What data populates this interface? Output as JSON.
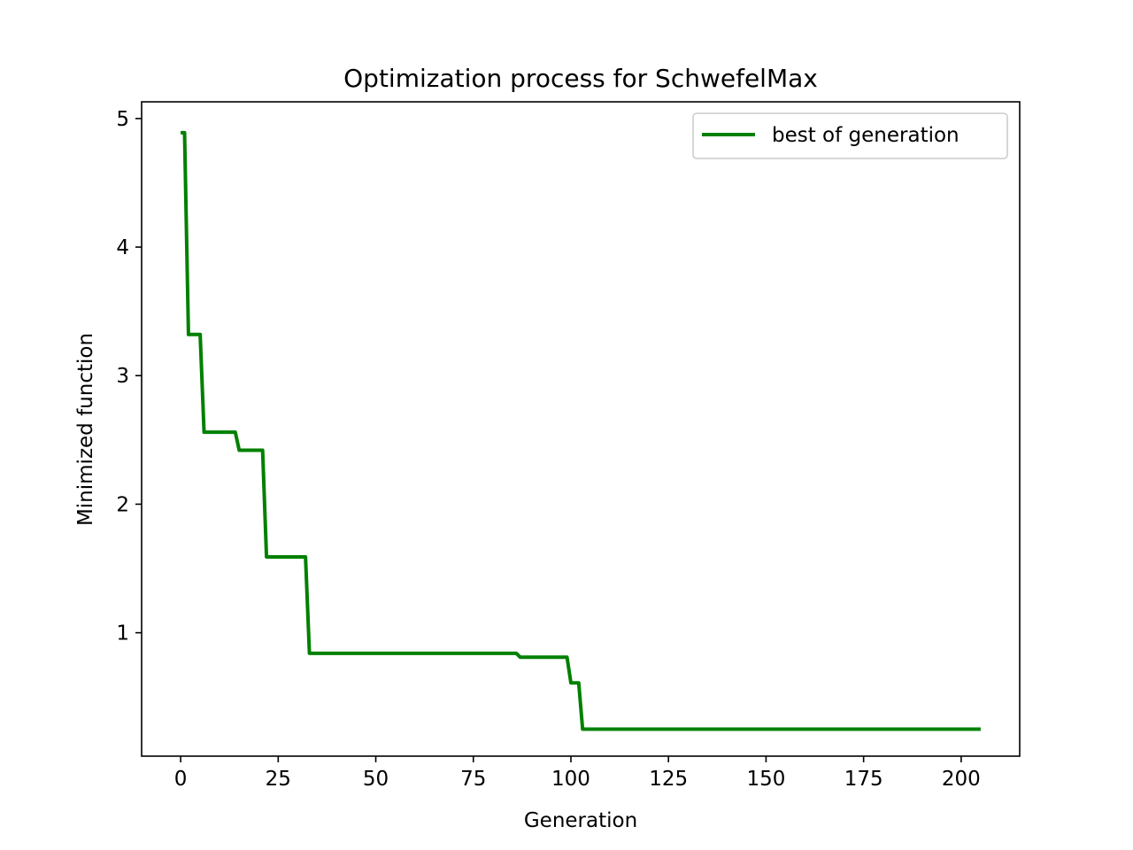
{
  "chart_data": {
    "type": "line",
    "title": "Optimization process for SchwefelMax",
    "xlabel": "Generation",
    "ylabel": "Minimized function",
    "xlim": [
      -10,
      215
    ],
    "ylim": [
      0.04,
      5.13
    ],
    "xticks": [
      0,
      25,
      50,
      75,
      100,
      125,
      150,
      175,
      200
    ],
    "xtick_labels": [
      "0",
      "25",
      "50",
      "75",
      "100",
      "125",
      "150",
      "175",
      "200"
    ],
    "yticks": [
      1,
      2,
      3,
      4,
      5
    ],
    "ytick_labels": [
      "1",
      "2",
      "3",
      "4",
      "5"
    ],
    "grid": false,
    "legend_position": "upper right",
    "series": [
      {
        "name": "best of generation",
        "color": "#008000",
        "x": [
          0,
          1,
          2,
          5,
          6,
          14,
          15,
          21,
          22,
          32,
          33,
          86,
          87,
          99,
          100,
          102,
          103,
          205
        ],
        "y": [
          4.89,
          4.89,
          3.32,
          3.32,
          2.56,
          2.56,
          2.42,
          2.42,
          1.59,
          1.59,
          0.84,
          0.84,
          0.81,
          0.81,
          0.61,
          0.61,
          0.25,
          0.25
        ]
      }
    ]
  }
}
